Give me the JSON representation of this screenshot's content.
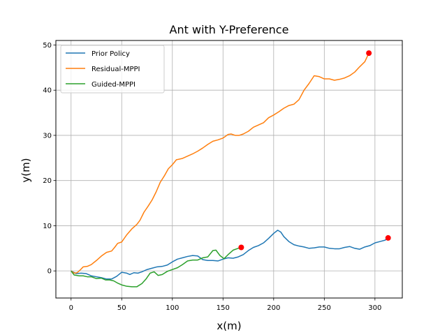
{
  "chart_data": {
    "type": "line",
    "title": "Ant with Y-Preference",
    "xlabel": "x(m)",
    "ylabel": "y(m)",
    "xlim": [
      -15,
      327
    ],
    "ylim": [
      -6,
      51
    ],
    "xticks": [
      0,
      50,
      100,
      150,
      200,
      250,
      300
    ],
    "yticks": [
      0,
      10,
      20,
      30,
      40,
      50
    ],
    "grid": true,
    "legend_position": "top-left",
    "series": [
      {
        "name": "Prior Policy",
        "color": "#1f77b4",
        "points": [
          [
            0,
            0
          ],
          [
            5,
            -0.6
          ],
          [
            10,
            -0.5
          ],
          [
            15,
            -0.6
          ],
          [
            20,
            -1.1
          ],
          [
            25,
            -1.3
          ],
          [
            30,
            -1.5
          ],
          [
            35,
            -1.8
          ],
          [
            40,
            -1.8
          ],
          [
            45,
            -1.2
          ],
          [
            50,
            -0.3
          ],
          [
            55,
            -0.5
          ],
          [
            58,
            -0.8
          ],
          [
            62,
            -0.4
          ],
          [
            66,
            -0.5
          ],
          [
            70,
            -0.2
          ],
          [
            75,
            0.3
          ],
          [
            80,
            0.6
          ],
          [
            85,
            0.9
          ],
          [
            90,
            1.0
          ],
          [
            95,
            1.3
          ],
          [
            100,
            2.0
          ],
          [
            105,
            2.6
          ],
          [
            110,
            2.9
          ],
          [
            115,
            3.2
          ],
          [
            120,
            3.4
          ],
          [
            125,
            3.3
          ],
          [
            130,
            2.5
          ],
          [
            135,
            2.3
          ],
          [
            140,
            2.3
          ],
          [
            145,
            2.2
          ],
          [
            150,
            2.6
          ],
          [
            155,
            2.9
          ],
          [
            160,
            2.8
          ],
          [
            165,
            3.1
          ],
          [
            170,
            3.6
          ],
          [
            175,
            4.5
          ],
          [
            180,
            5.2
          ],
          [
            185,
            5.6
          ],
          [
            190,
            6.2
          ],
          [
            195,
            7.2
          ],
          [
            200,
            8.3
          ],
          [
            204,
            9.0
          ],
          [
            207,
            8.6
          ],
          [
            210,
            7.6
          ],
          [
            215,
            6.5
          ],
          [
            220,
            5.8
          ],
          [
            225,
            5.5
          ],
          [
            230,
            5.3
          ],
          [
            235,
            5.0
          ],
          [
            240,
            5.1
          ],
          [
            245,
            5.3
          ],
          [
            250,
            5.3
          ],
          [
            255,
            5.0
          ],
          [
            260,
            4.9
          ],
          [
            265,
            4.9
          ],
          [
            270,
            5.2
          ],
          [
            275,
            5.4
          ],
          [
            280,
            5.0
          ],
          [
            285,
            4.8
          ],
          [
            290,
            5.3
          ],
          [
            295,
            5.6
          ],
          [
            300,
            6.2
          ],
          [
            305,
            6.5
          ],
          [
            310,
            6.8
          ],
          [
            313,
            7.3
          ]
        ]
      },
      {
        "name": "Residual-MPPI",
        "color": "#ff7f0e",
        "points": [
          [
            0,
            0
          ],
          [
            3,
            -0.5
          ],
          [
            6,
            -0.4
          ],
          [
            9,
            0.2
          ],
          [
            12,
            0.9
          ],
          [
            16,
            1.0
          ],
          [
            20,
            1.4
          ],
          [
            25,
            2.3
          ],
          [
            30,
            3.3
          ],
          [
            35,
            4.1
          ],
          [
            40,
            4.4
          ],
          [
            43,
            5.2
          ],
          [
            46,
            6.1
          ],
          [
            50,
            6.4
          ],
          [
            55,
            8.0
          ],
          [
            60,
            9.3
          ],
          [
            65,
            10.3
          ],
          [
            68,
            11.2
          ],
          [
            72,
            13.0
          ],
          [
            76,
            14.3
          ],
          [
            80,
            15.7
          ],
          [
            84,
            17.5
          ],
          [
            88,
            19.6
          ],
          [
            92,
            21.0
          ],
          [
            96,
            22.6
          ],
          [
            100,
            23.5
          ],
          [
            104,
            24.6
          ],
          [
            110,
            24.9
          ],
          [
            115,
            25.4
          ],
          [
            120,
            25.9
          ],
          [
            125,
            26.5
          ],
          [
            130,
            27.2
          ],
          [
            135,
            28.0
          ],
          [
            140,
            28.7
          ],
          [
            145,
            29.0
          ],
          [
            150,
            29.4
          ],
          [
            155,
            30.2
          ],
          [
            158,
            30.3
          ],
          [
            162,
            30.0
          ],
          [
            166,
            30.0
          ],
          [
            170,
            30.3
          ],
          [
            175,
            30.9
          ],
          [
            180,
            31.8
          ],
          [
            185,
            32.3
          ],
          [
            190,
            32.8
          ],
          [
            195,
            33.9
          ],
          [
            200,
            34.5
          ],
          [
            205,
            35.2
          ],
          [
            210,
            36.0
          ],
          [
            215,
            36.6
          ],
          [
            220,
            36.9
          ],
          [
            225,
            37.9
          ],
          [
            230,
            40.0
          ],
          [
            235,
            41.5
          ],
          [
            240,
            43.2
          ],
          [
            245,
            43.0
          ],
          [
            250,
            42.5
          ],
          [
            255,
            42.5
          ],
          [
            260,
            42.2
          ],
          [
            265,
            42.4
          ],
          [
            270,
            42.7
          ],
          [
            275,
            43.2
          ],
          [
            280,
            44.0
          ],
          [
            285,
            45.2
          ],
          [
            290,
            46.3
          ],
          [
            294,
            48.2
          ]
        ]
      },
      {
        "name": "Guided-MPPI",
        "color": "#2ca02c",
        "points": [
          [
            0,
            0
          ],
          [
            3,
            -0.9
          ],
          [
            8,
            -1.1
          ],
          [
            12,
            -1.1
          ],
          [
            16,
            -1.3
          ],
          [
            20,
            -1.3
          ],
          [
            25,
            -1.7
          ],
          [
            30,
            -1.6
          ],
          [
            34,
            -2.0
          ],
          [
            38,
            -2.0
          ],
          [
            42,
            -2.2
          ],
          [
            46,
            -2.7
          ],
          [
            50,
            -3.1
          ],
          [
            55,
            -3.4
          ],
          [
            60,
            -3.5
          ],
          [
            65,
            -3.5
          ],
          [
            70,
            -2.8
          ],
          [
            74,
            -1.8
          ],
          [
            78,
            -0.5
          ],
          [
            82,
            -0.2
          ],
          [
            86,
            -1.0
          ],
          [
            90,
            -0.8
          ],
          [
            95,
            -0.1
          ],
          [
            100,
            0.3
          ],
          [
            105,
            0.7
          ],
          [
            110,
            1.4
          ],
          [
            115,
            2.2
          ],
          [
            120,
            2.4
          ],
          [
            125,
            2.4
          ],
          [
            130,
            2.9
          ],
          [
            135,
            3.1
          ],
          [
            140,
            4.5
          ],
          [
            143,
            4.6
          ],
          [
            147,
            3.4
          ],
          [
            151,
            2.7
          ],
          [
            155,
            3.6
          ],
          [
            160,
            4.6
          ],
          [
            165,
            5.0
          ],
          [
            168,
            5.3
          ]
        ]
      }
    ],
    "end_markers": [
      {
        "x": 294,
        "y": 48.2,
        "color": "#ff0000"
      },
      {
        "x": 313,
        "y": 7.3,
        "color": "#ff0000"
      },
      {
        "x": 168,
        "y": 5.2,
        "color": "#ff0000"
      }
    ]
  }
}
